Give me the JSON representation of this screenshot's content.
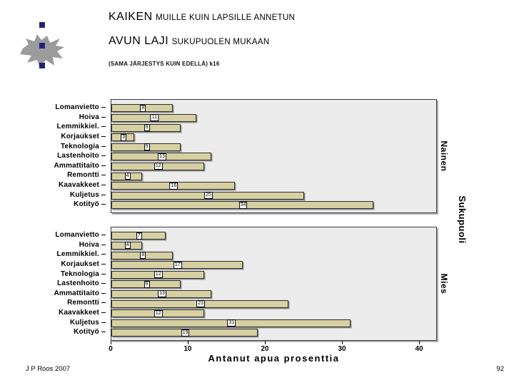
{
  "slide": {
    "title1_strong": "KAIKEN",
    "title1_rest": "MUILLE KUIN LAPSILLE ANNETUN",
    "title2_strong": "AVUN LAJI",
    "title2_rest": "SUKUPUOLEN MUKAAN",
    "subtitle": "(SAMA JÄRJESTYS KUIN EDELLÄ) k16",
    "footer_left": "J P Roos 2007",
    "page_number": "92"
  },
  "chart_data": {
    "type": "bar",
    "orientation": "horizontal",
    "categories": [
      "Lomanvietto",
      "Hoiva",
      "Lemmikkiel.",
      "Korjaukset",
      "Teknologia",
      "Lastenhoito",
      "Ammattitaito",
      "Remontti",
      "Kaavakkeet",
      "Kuljetus",
      "Kotityö"
    ],
    "series": [
      {
        "name": "Nainen",
        "values": [
          8,
          11,
          9,
          3,
          9,
          13,
          12,
          4,
          16,
          25,
          34
        ]
      },
      {
        "name": "Mies",
        "values": [
          7,
          4,
          8,
          17,
          12,
          9,
          13,
          23,
          12,
          31,
          19
        ]
      }
    ],
    "panel_group_label": "Sukupuoli",
    "xlabel": "Antanut apua prosenttia",
    "x_ticks": [
      0,
      10,
      20,
      30,
      40
    ],
    "xlim": [
      0,
      42
    ],
    "value_labels": "shown at bar midpoint in white boxes",
    "legend": "none",
    "grid": false,
    "bar_color": "#d6d0a2",
    "bar_border_color": "#2e2e2e",
    "panel_bg_color": "#ececec",
    "logo_square_color": "#23237a",
    "logo_flame_color": "#9b9b9b"
  }
}
